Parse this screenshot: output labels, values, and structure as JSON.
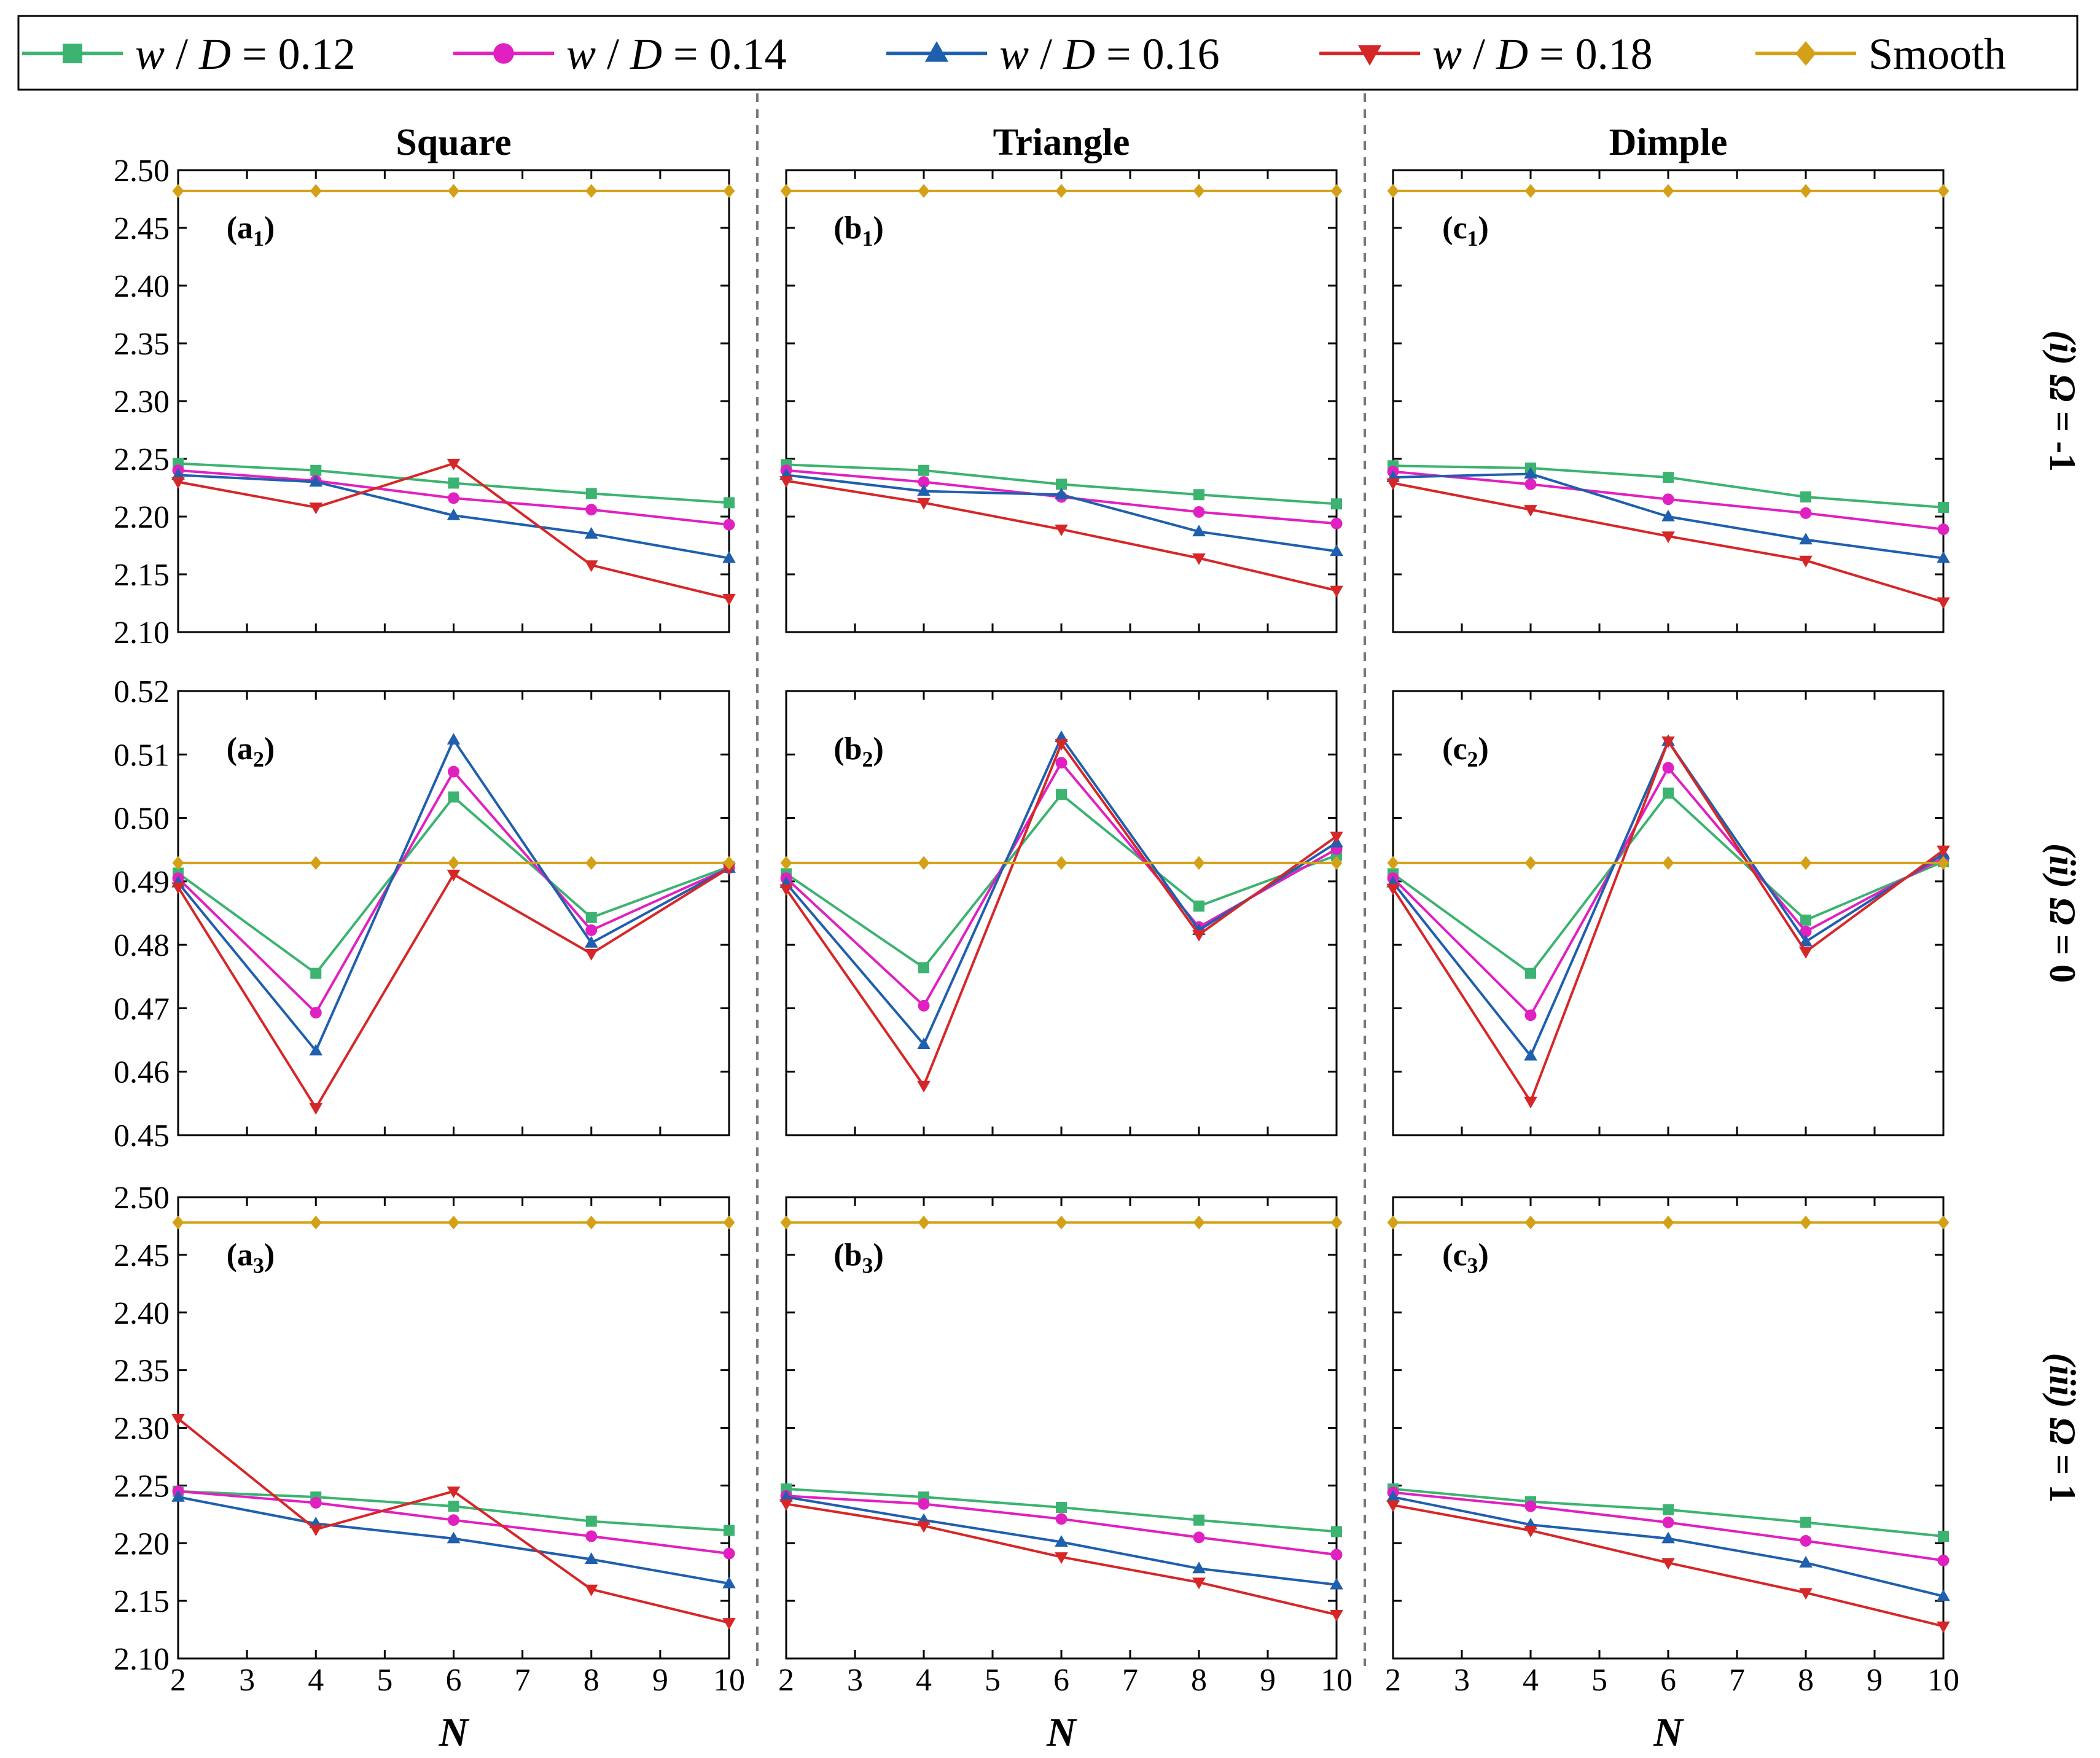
{
  "chart_data": {
    "type": "line",
    "x": [
      2,
      4,
      6,
      8,
      10
    ],
    "xlabel": "N",
    "x_ticks": [
      2,
      3,
      4,
      5,
      6,
      7,
      8,
      9,
      10
    ],
    "columns": [
      "Square",
      "Triangle",
      "Dimple"
    ],
    "legend": {
      "placement": "top",
      "entries": [
        {
          "prefix": "w",
          "sep": " / ",
          "var": "D",
          "suffix": " = 0.12",
          "color": "#3cb371",
          "marker": "square"
        },
        {
          "prefix": "w",
          "sep": " / ",
          "var": "D",
          "suffix": " = 0.14",
          "color": "#e020c0",
          "marker": "circle"
        },
        {
          "prefix": "w",
          "sep": " / ",
          "var": "D",
          "suffix": " = 0.16",
          "color": "#1f5fad",
          "marker": "triangle-up"
        },
        {
          "prefix": "w",
          "sep": " / ",
          "var": "D",
          "suffix": " = 0.18",
          "color": "#d62728",
          "marker": "triangle-down"
        },
        {
          "prefix": "",
          "sep": "",
          "var": "",
          "suffix": "Smooth",
          "color": "#d4a017",
          "marker": "diamond"
        }
      ]
    },
    "rows": [
      {
        "label_parts": [
          "(i) ",
          "Ω",
          " = -1"
        ],
        "ylim": [
          2.1,
          2.5
        ],
        "y_ticks": [
          "2.10",
          "2.15",
          "2.20",
          "2.25",
          "2.30",
          "2.35",
          "2.40",
          "2.45",
          "2.50"
        ],
        "panels": [
          {
            "label": [
              "a",
              "1"
            ],
            "series": [
              {
                "name": "w / D = 0.12",
                "values": [
                  2.246,
                  2.24,
                  2.229,
                  2.22,
                  2.212
                ]
              },
              {
                "name": "w / D = 0.14",
                "values": [
                  2.24,
                  2.231,
                  2.216,
                  2.206,
                  2.193
                ]
              },
              {
                "name": "w / D = 0.16",
                "values": [
                  2.236,
                  2.23,
                  2.201,
                  2.185,
                  2.164
                ]
              },
              {
                "name": "w / D = 0.18",
                "values": [
                  2.23,
                  2.208,
                  2.246,
                  2.158,
                  2.129
                ]
              },
              {
                "name": "Smooth",
                "values": [
                  2.482,
                  2.482,
                  2.482,
                  2.482,
                  2.482
                ]
              }
            ]
          },
          {
            "label": [
              "b",
              "1"
            ],
            "series": [
              {
                "name": "w / D = 0.12",
                "values": [
                  2.245,
                  2.24,
                  2.228,
                  2.219,
                  2.211
                ]
              },
              {
                "name": "w / D = 0.14",
                "values": [
                  2.24,
                  2.23,
                  2.217,
                  2.204,
                  2.194
                ]
              },
              {
                "name": "w / D = 0.16",
                "values": [
                  2.236,
                  2.222,
                  2.219,
                  2.187,
                  2.17
                ]
              },
              {
                "name": "w / D = 0.18",
                "values": [
                  2.231,
                  2.212,
                  2.189,
                  2.164,
                  2.136
                ]
              },
              {
                "name": "Smooth",
                "values": [
                  2.482,
                  2.482,
                  2.482,
                  2.482,
                  2.482
                ]
              }
            ]
          },
          {
            "label": [
              "c",
              "1"
            ],
            "series": [
              {
                "name": "w / D = 0.12",
                "values": [
                  2.244,
                  2.242,
                  2.234,
                  2.217,
                  2.208
                ]
              },
              {
                "name": "w / D = 0.14",
                "values": [
                  2.239,
                  2.228,
                  2.215,
                  2.203,
                  2.189
                ]
              },
              {
                "name": "w / D = 0.16",
                "values": [
                  2.234,
                  2.237,
                  2.2,
                  2.18,
                  2.164
                ]
              },
              {
                "name": "w / D = 0.18",
                "values": [
                  2.229,
                  2.206,
                  2.183,
                  2.162,
                  2.126
                ]
              },
              {
                "name": "Smooth",
                "values": [
                  2.482,
                  2.482,
                  2.482,
                  2.482,
                  2.482
                ]
              }
            ]
          }
        ]
      },
      {
        "label_parts": [
          "(ii) ",
          "Ω",
          " = 0"
        ],
        "ylim": [
          0.45,
          0.52
        ],
        "y_ticks": [
          "0.45",
          "0.46",
          "0.47",
          "0.48",
          "0.49",
          "0.50",
          "0.51",
          "0.52"
        ],
        "panels": [
          {
            "label": [
              "a",
              "2"
            ],
            "series": [
              {
                "name": "w / D = 0.12",
                "values": [
                  0.4913,
                  0.4755,
                  0.5033,
                  0.4843,
                  0.4923
                ]
              },
              {
                "name": "w / D = 0.14",
                "values": [
                  0.4905,
                  0.4693,
                  0.5073,
                  0.4823,
                  0.4921
                ]
              },
              {
                "name": "w / D = 0.16",
                "values": [
                  0.4898,
                  0.4633,
                  0.5123,
                  0.4803,
                  0.4921
                ]
              },
              {
                "name": "w / D = 0.18",
                "values": [
                  0.4891,
                  0.4543,
                  0.4911,
                  0.4786,
                  0.4921
                ]
              },
              {
                "name": "Smooth",
                "values": [
                  0.4929,
                  0.4929,
                  0.4929,
                  0.4929,
                  0.4929
                ]
              }
            ]
          },
          {
            "label": [
              "b",
              "2"
            ],
            "series": [
              {
                "name": "w / D = 0.12",
                "values": [
                  0.4912,
                  0.4764,
                  0.5037,
                  0.4861,
                  0.4941
                ]
              },
              {
                "name": "w / D = 0.14",
                "values": [
                  0.4905,
                  0.4704,
                  0.5087,
                  0.4828,
                  0.4951
                ]
              },
              {
                "name": "w / D = 0.16",
                "values": [
                  0.4897,
                  0.4643,
                  0.5127,
                  0.4823,
                  0.4961
                ]
              },
              {
                "name": "w / D = 0.18",
                "values": [
                  0.4888,
                  0.4578,
                  0.5117,
                  0.4816,
                  0.4971
                ]
              },
              {
                "name": "Smooth",
                "values": [
                  0.4929,
                  0.4929,
                  0.4929,
                  0.4929,
                  0.4929
                ]
              }
            ]
          },
          {
            "label": [
              "c",
              "2"
            ],
            "series": [
              {
                "name": "w / D = 0.12",
                "values": [
                  0.4912,
                  0.4755,
                  0.5039,
                  0.4839,
                  0.4931
                ]
              },
              {
                "name": "w / D = 0.14",
                "values": [
                  0.4905,
                  0.4689,
                  0.5079,
                  0.4821,
                  0.4937
                ]
              },
              {
                "name": "w / D = 0.16",
                "values": [
                  0.4898,
                  0.4625,
                  0.5121,
                  0.4805,
                  0.4943
                ]
              },
              {
                "name": "w / D = 0.18",
                "values": [
                  0.4889,
                  0.4553,
                  0.5121,
                  0.4789,
                  0.4949
                ]
              },
              {
                "name": "Smooth",
                "values": [
                  0.4929,
                  0.4929,
                  0.4929,
                  0.4929,
                  0.4929
                ]
              }
            ]
          }
        ]
      },
      {
        "label_parts": [
          "(iii) ",
          "Ω",
          " = 1"
        ],
        "ylim": [
          2.1,
          2.5
        ],
        "y_ticks": [
          "2.10",
          "2.15",
          "2.20",
          "2.25",
          "2.30",
          "2.35",
          "2.40",
          "2.45",
          "2.50"
        ],
        "panels": [
          {
            "label": [
              "a",
              "3"
            ],
            "series": [
              {
                "name": "w / D = 0.12",
                "values": [
                  2.245,
                  2.24,
                  2.232,
                  2.219,
                  2.211
                ]
              },
              {
                "name": "w / D = 0.14",
                "values": [
                  2.245,
                  2.235,
                  2.22,
                  2.206,
                  2.191
                ]
              },
              {
                "name": "w / D = 0.16",
                "values": [
                  2.24,
                  2.217,
                  2.204,
                  2.186,
                  2.165
                ]
              },
              {
                "name": "w / D = 0.18",
                "values": [
                  2.308,
                  2.212,
                  2.245,
                  2.16,
                  2.131
                ]
              },
              {
                "name": "Smooth",
                "values": [
                  2.478,
                  2.478,
                  2.478,
                  2.478,
                  2.478
                ]
              }
            ]
          },
          {
            "label": [
              "b",
              "3"
            ],
            "series": [
              {
                "name": "w / D = 0.12",
                "values": [
                  2.247,
                  2.24,
                  2.231,
                  2.22,
                  2.21
                ]
              },
              {
                "name": "w / D = 0.14",
                "values": [
                  2.241,
                  2.234,
                  2.221,
                  2.205,
                  2.19
                ]
              },
              {
                "name": "w / D = 0.16",
                "values": [
                  2.24,
                  2.22,
                  2.201,
                  2.178,
                  2.164
                ]
              },
              {
                "name": "w / D = 0.18",
                "values": [
                  2.234,
                  2.215,
                  2.188,
                  2.166,
                  2.138
                ]
              },
              {
                "name": "Smooth",
                "values": [
                  2.478,
                  2.478,
                  2.478,
                  2.478,
                  2.478
                ]
              }
            ]
          },
          {
            "label": [
              "c",
              "3"
            ],
            "series": [
              {
                "name": "w / D = 0.12",
                "values": [
                  2.247,
                  2.236,
                  2.229,
                  2.218,
                  2.206
                ]
              },
              {
                "name": "w / D = 0.14",
                "values": [
                  2.244,
                  2.232,
                  2.218,
                  2.202,
                  2.185
                ]
              },
              {
                "name": "w / D = 0.16",
                "values": [
                  2.24,
                  2.216,
                  2.204,
                  2.183,
                  2.154
                ]
              },
              {
                "name": "w / D = 0.18",
                "values": [
                  2.233,
                  2.211,
                  2.183,
                  2.157,
                  2.128
                ]
              },
              {
                "name": "Smooth",
                "values": [
                  2.478,
                  2.478,
                  2.478,
                  2.478,
                  2.478
                ]
              }
            ]
          }
        ]
      }
    ]
  }
}
